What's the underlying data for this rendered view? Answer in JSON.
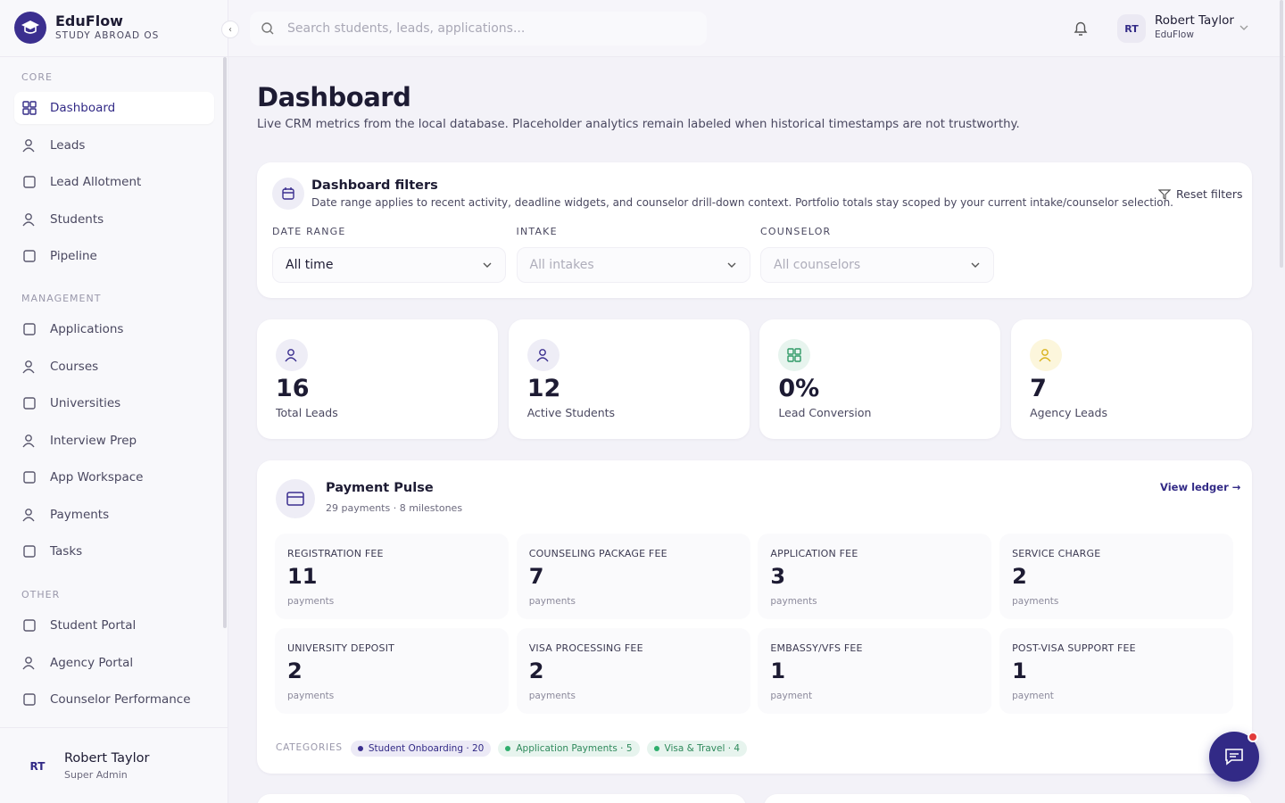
{
  "brand": {
    "name": "EduFlow",
    "tagline": "STUDY ABROAD OS"
  },
  "search": {
    "placeholder": "Search students, leads, applications..."
  },
  "user": {
    "initials": "RT",
    "name": "Robert Taylor",
    "org": "EduFlow"
  },
  "sidebar": {
    "sections": [
      {
        "title": "CORE",
        "items": [
          "Dashboard",
          "Leads",
          "Lead Allotment",
          "Students",
          "Pipeline"
        ]
      },
      {
        "title": "MANAGEMENT",
        "items": [
          "Applications",
          "Courses",
          "Universities",
          "Interview Prep",
          "App Workspace",
          "Payments",
          "Tasks"
        ]
      },
      {
        "title": "OTHER",
        "items": [
          "Student Portal",
          "Agency Portal",
          "Counselor Performance"
        ]
      }
    ],
    "footer": {
      "initials": "RT",
      "name": "Robert Taylor",
      "role": "Super Admin"
    }
  },
  "page": {
    "title": "Dashboard",
    "subtitle": "Live CRM metrics from the local database. Placeholder analytics remain labeled when historical timestamps are not trustworthy."
  },
  "filters": {
    "title": "Dashboard filters",
    "description": "Date range applies to recent activity, deadline widgets, and counselor drill-down context. Portfolio totals stay scoped by your current intake/counselor selection.",
    "reset": "Reset filters",
    "fields": [
      {
        "label": "DATE RANGE",
        "value": "All time"
      },
      {
        "label": "INTAKE",
        "value": "All intakes"
      },
      {
        "label": "COUNSELOR",
        "value": "All counselors"
      }
    ]
  },
  "stats": [
    {
      "value": 16,
      "label": "Total Leads"
    },
    {
      "value": 12,
      "label": "Active Students"
    },
    {
      "value": "0%",
      "label": "Lead Conversion"
    },
    {
      "value": 7,
      "label": "Agency Leads"
    }
  ],
  "payments": {
    "title": "Payment Pulse",
    "summary": "29 payments · 8 milestones",
    "link": "View ledger",
    "items": [
      {
        "label": "REGISTRATION FEE",
        "count": 11,
        "unit": "payments"
      },
      {
        "label": "COUNSELING PACKAGE FEE",
        "count": 7,
        "unit": "payments"
      },
      {
        "label": "APPLICATION FEE",
        "count": 3,
        "unit": "payments"
      },
      {
        "label": "SERVICE CHARGE",
        "count": 2,
        "unit": "payments"
      },
      {
        "label": "UNIVERSITY DEPOSIT",
        "count": 2,
        "unit": "payments"
      },
      {
        "label": "VISA PROCESSING FEE",
        "count": 2,
        "unit": "payments"
      },
      {
        "label": "EMBASSY/VFS FEE",
        "count": 1,
        "unit": "payment"
      },
      {
        "label": "POST-VISA SUPPORT FEE",
        "count": 1,
        "unit": "payment"
      }
    ],
    "categories_label": "CATEGORIES",
    "categories": [
      "Student Onboarding · 20",
      "Application Payments · 5",
      "Visa & Travel · 4"
    ]
  }
}
